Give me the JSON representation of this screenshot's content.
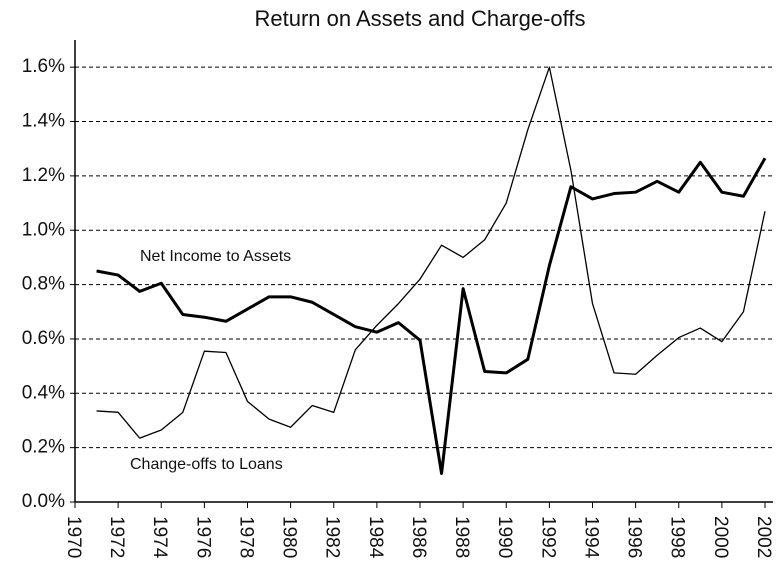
{
  "chart_data": {
    "type": "line",
    "title": "Return on Assets and Charge-offs",
    "x": [
      1971,
      1972,
      1973,
      1974,
      1975,
      1976,
      1977,
      1978,
      1979,
      1980,
      1981,
      1982,
      1983,
      1984,
      1985,
      1986,
      1987,
      1988,
      1989,
      1990,
      1991,
      1992,
      1993,
      1994,
      1995,
      1996,
      1997,
      1998,
      1999,
      2000,
      2001,
      2002
    ],
    "series": [
      {
        "name": "Net Income to Assets",
        "color": "#000000",
        "width": 3,
        "values": [
          0.85,
          0.835,
          0.775,
          0.805,
          0.69,
          0.68,
          0.665,
          0.71,
          0.755,
          0.755,
          0.735,
          0.69,
          0.645,
          0.625,
          0.66,
          0.595,
          0.105,
          0.785,
          0.48,
          0.475,
          0.525,
          0.87,
          1.16,
          1.115,
          1.135,
          1.14,
          1.18,
          1.14,
          1.25,
          1.14,
          1.125,
          1.265
        ]
      },
      {
        "name": "Change-offs to Loans",
        "color": "#000000",
        "width": 1.3,
        "values": [
          0.335,
          0.33,
          0.235,
          0.265,
          0.33,
          0.555,
          0.55,
          0.37,
          0.305,
          0.275,
          0.355,
          0.33,
          0.56,
          0.65,
          0.73,
          0.82,
          0.945,
          0.9,
          0.965,
          1.1,
          1.37,
          1.6,
          1.22,
          0.73,
          0.475,
          0.47,
          0.54,
          0.605,
          0.64,
          0.59,
          0.7,
          1.07
        ]
      }
    ],
    "xlim": [
      1970,
      2002
    ],
    "xticks": [
      1970,
      1972,
      1974,
      1976,
      1978,
      1980,
      1982,
      1984,
      1986,
      1988,
      1990,
      1992,
      1994,
      1996,
      1998,
      2000,
      2002
    ],
    "ylim": [
      0,
      1.7
    ],
    "yticks": [
      {
        "value": 0,
        "label": "0.0%"
      },
      {
        "value": 0.2,
        "label": "0.2%"
      },
      {
        "value": 0.4,
        "label": "0.4%"
      },
      {
        "value": 0.6,
        "label": "0.6%"
      },
      {
        "value": 0.8,
        "label": "0.8%"
      },
      {
        "value": 1.0,
        "label": "1.0%"
      },
      {
        "value": 1.2,
        "label": "1.2%"
      },
      {
        "value": 1.4,
        "label": "1.4%"
      },
      {
        "value": 1.6,
        "label": "1.6%"
      }
    ],
    "grid": true
  }
}
